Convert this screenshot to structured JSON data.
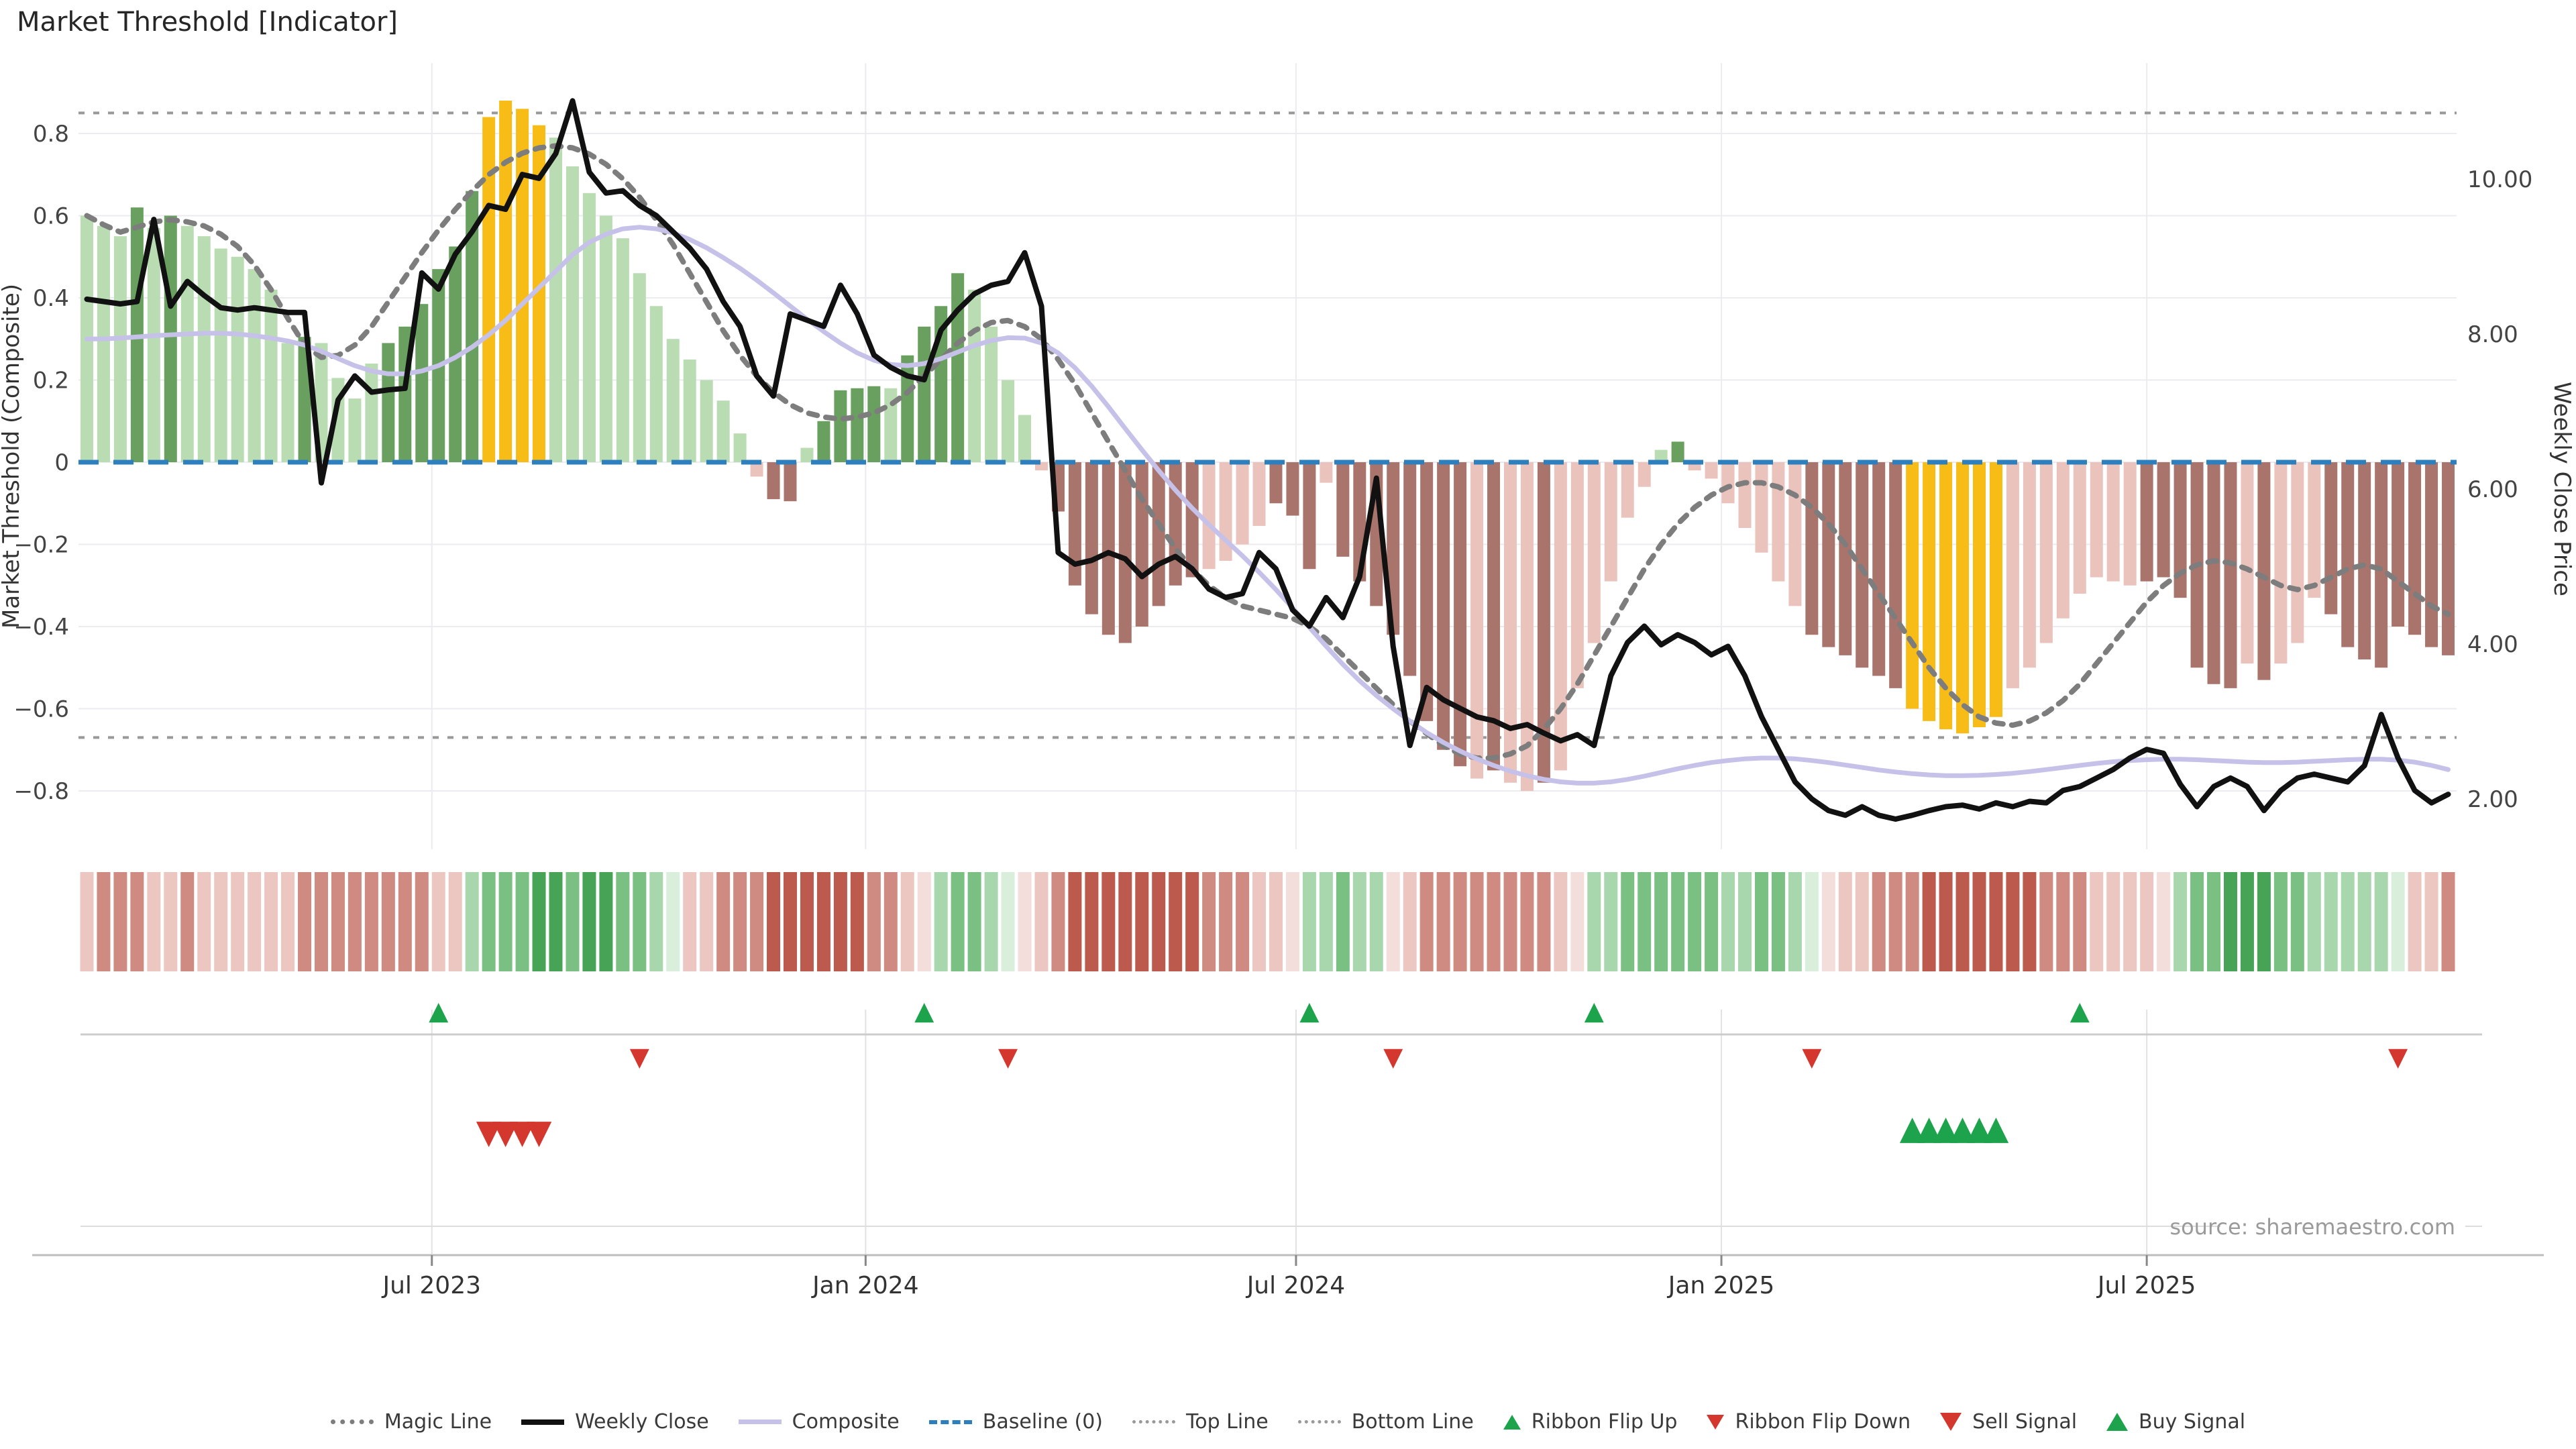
{
  "title": "Market Threshold [Indicator]",
  "source": "source: sharemaestro.com",
  "axes": {
    "left": {
      "label": "Market Threshold (Composite)",
      "tick_labels": [
        "0.8",
        "0.6",
        "0.4",
        "0.2",
        "0",
        "−0.2",
        "−0.4",
        "−0.6",
        "−0.8"
      ],
      "tick_values": [
        0.8,
        0.6,
        0.4,
        0.2,
        0,
        -0.2,
        -0.4,
        -0.6,
        -0.8
      ],
      "range": [
        -0.94,
        0.97
      ]
    },
    "right": {
      "label": "Weekly Close Price",
      "tick_labels": [
        "10.00",
        "8.00",
        "6.00",
        "4.00",
        "2.00"
      ],
      "tick_values": [
        10,
        8,
        6,
        4,
        2
      ],
      "range": [
        1.35,
        11.5
      ]
    },
    "x": {
      "tick_labels": [
        "Jul 2023",
        "Jan 2024",
        "Jul 2024",
        "Jan 2025",
        "Jul 2025"
      ],
      "tick_weeks": [
        20.6,
        46.5,
        72.2,
        97.6,
        123
      ]
    }
  },
  "legend": {
    "items": [
      {
        "label": "Magic Line",
        "type": "dotted-line",
        "color": "#7d7d7d"
      },
      {
        "label": "Weekly Close",
        "type": "solid-line",
        "color": "#111111"
      },
      {
        "label": "Composite",
        "type": "solid-line",
        "color": "#c6c1e8"
      },
      {
        "label": "Baseline (0)",
        "type": "dashed-line",
        "color": "#2e7fbe"
      },
      {
        "label": "Top Line",
        "type": "fine-dotted-line",
        "color": "#999999"
      },
      {
        "label": "Bottom Line",
        "type": "fine-dotted-line",
        "color": "#999999"
      },
      {
        "label": "Ribbon Flip Up",
        "type": "triangle-up",
        "color": "#1da34c"
      },
      {
        "label": "Ribbon Flip Down",
        "type": "triangle-down",
        "color": "#d4372e"
      },
      {
        "label": "Sell Signal",
        "type": "triangle-down-large",
        "color": "#d4372e"
      },
      {
        "label": "Buy Signal",
        "type": "triangle-up-large",
        "color": "#1da34c"
      }
    ]
  },
  "colors": {
    "bar_dark_green": "#69a05f",
    "bar_light_green": "#b9dcb2",
    "bar_yellow": "#f7bd16",
    "bar_light_pink": "#eac3bd",
    "bar_brown": "#a9746c",
    "ribbon_g0": "#d9eedb",
    "ribbon_g1": "#a8d7ae",
    "ribbon_g2": "#7ac083",
    "ribbon_g3": "#47a457",
    "ribbon_r0": "#f3dedb",
    "ribbon_r1": "#ecc6c1",
    "ribbon_r2": "#cf8b81",
    "ribbon_r3": "#bb5a4d",
    "weekly_close": "#111111",
    "composite": "#c6c1e8",
    "magic": "#7d7d7d",
    "baseline": "#2e7fbe",
    "top_bottom": "#999999",
    "grid": "#ebebf1",
    "signal_up": "#1da34c",
    "signal_down": "#d4372e"
  },
  "chart_data": {
    "type": "combo (weekly bars + lines + ribbon heatmap + signal markers)",
    "weeks": 142,
    "top_line": 0.85,
    "bottom_line": -0.67,
    "baseline": 0,
    "threshold_bars": {
      "values": [
        0.6,
        0.575,
        0.55,
        0.62,
        0.57,
        0.6,
        0.575,
        0.55,
        0.52,
        0.5,
        0.47,
        0.42,
        0.29,
        0.305,
        0.29,
        0.205,
        0.155,
        0.24,
        0.29,
        0.33,
        0.385,
        0.47,
        0.525,
        0.66,
        0.84,
        0.88,
        0.86,
        0.82,
        0.79,
        0.72,
        0.655,
        0.6,
        0.545,
        0.46,
        0.38,
        0.3,
        0.25,
        0.2,
        0.15,
        0.07,
        -0.035,
        -0.09,
        -0.095,
        0.035,
        0.1,
        0.175,
        0.18,
        0.185,
        0.18,
        0.26,
        0.33,
        0.38,
        0.46,
        0.42,
        0.33,
        0.2,
        0.115,
        -0.02,
        -0.12,
        -0.3,
        -0.37,
        -0.42,
        -0.44,
        -0.4,
        -0.35,
        -0.3,
        -0.28,
        -0.26,
        -0.24,
        -0.2,
        -0.155,
        -0.1,
        -0.13,
        -0.26,
        -0.05,
        -0.23,
        -0.29,
        -0.35,
        -0.42,
        -0.52,
        -0.63,
        -0.7,
        -0.74,
        -0.77,
        -0.75,
        -0.78,
        -0.8,
        -0.78,
        -0.75,
        -0.55,
        -0.44,
        -0.29,
        -0.135,
        -0.06,
        0.03,
        0.05,
        -0.02,
        -0.04,
        -0.1,
        -0.16,
        -0.22,
        -0.29,
        -0.35,
        -0.42,
        -0.45,
        -0.47,
        -0.5,
        -0.52,
        -0.55,
        -0.6,
        -0.63,
        -0.65,
        -0.66,
        -0.645,
        -0.62,
        -0.55,
        -0.5,
        -0.44,
        -0.38,
        -0.32,
        -0.28,
        -0.29,
        -0.3,
        -0.29,
        -0.28,
        -0.33,
        -0.5,
        -0.54,
        -0.55,
        -0.49,
        -0.53,
        -0.49,
        -0.44,
        -0.33,
        -0.37,
        -0.45,
        -0.48,
        -0.5,
        -0.4,
        -0.42,
        -0.45,
        -0.47
      ],
      "colors": [
        "lg",
        "lg",
        "lg",
        "dg",
        "lg",
        "dg",
        "lg",
        "lg",
        "lg",
        "lg",
        "lg",
        "lg",
        "lg",
        "dg",
        "lg",
        "lg",
        "lg",
        "lg",
        "dg",
        "dg",
        "dg",
        "dg",
        "dg",
        "dg",
        "y",
        "y",
        "y",
        "y",
        "lg",
        "lg",
        "lg",
        "lg",
        "lg",
        "lg",
        "lg",
        "lg",
        "lg",
        "lg",
        "lg",
        "lg",
        "lp",
        "br",
        "br",
        "lg",
        "dg",
        "dg",
        "dg",
        "dg",
        "lg",
        "dg",
        "dg",
        "dg",
        "dg",
        "lg",
        "lg",
        "lg",
        "lg",
        "lp",
        "br",
        "br",
        "br",
        "br",
        "br",
        "br",
        "br",
        "br",
        "br",
        "lp",
        "lp",
        "lp",
        "lp",
        "br",
        "br",
        "br",
        "lp",
        "br",
        "br",
        "br",
        "br",
        "br",
        "br",
        "br",
        "br",
        "lp",
        "br",
        "lp",
        "lp",
        "br",
        "lp",
        "lp",
        "lp",
        "lp",
        "lp",
        "lp",
        "lg",
        "dg",
        "lp",
        "lp",
        "lp",
        "lp",
        "lp",
        "lp",
        "lp",
        "br",
        "br",
        "br",
        "br",
        "br",
        "br",
        "y",
        "y",
        "y",
        "y",
        "y",
        "y",
        "lp",
        "lp",
        "lp",
        "lp",
        "lp",
        "lp",
        "lp",
        "lp",
        "br",
        "br",
        "br",
        "br",
        "br",
        "br",
        "lp",
        "br",
        "lp",
        "lp",
        "lp",
        "br",
        "br",
        "br",
        "br",
        "br",
        "br",
        "br",
        "br"
      ]
    },
    "weekly_close_price": [
      8.45,
      8.42,
      8.39,
      8.42,
      9.48,
      8.36,
      8.68,
      8.5,
      8.34,
      8.31,
      8.34,
      8.31,
      8.28,
      8.28,
      6.08,
      7.15,
      7.46,
      7.25,
      7.28,
      7.3,
      8.79,
      8.58,
      9.03,
      9.32,
      9.66,
      9.61,
      10.06,
      10.01,
      10.33,
      11.01,
      10.09,
      9.82,
      9.85,
      9.66,
      9.53,
      9.32,
      9.11,
      8.84,
      8.42,
      8.1,
      7.46,
      7.2,
      8.26,
      8.18,
      8.1,
      8.63,
      8.26,
      7.73,
      7.57,
      7.46,
      7.41,
      8.05,
      8.31,
      8.52,
      8.63,
      8.68,
      9.05,
      8.36,
      5.18,
      5.03,
      5.08,
      5.18,
      5.1,
      4.87,
      5.03,
      5.13,
      4.97,
      4.71,
      4.6,
      4.65,
      5.18,
      4.97,
      4.44,
      4.23,
      4.6,
      4.34,
      4.87,
      6.14,
      3.97,
      2.69,
      3.44,
      3.28,
      3.17,
      3.06,
      3.01,
      2.91,
      2.96,
      2.85,
      2.75,
      2.83,
      2.69,
      3.59,
      4.02,
      4.23,
      3.99,
      4.12,
      4.02,
      3.86,
      3.97,
      3.59,
      3.06,
      2.64,
      2.22,
      2.0,
      1.85,
      1.79,
      1.9,
      1.79,
      1.74,
      1.79,
      1.85,
      1.9,
      1.92,
      1.87,
      1.95,
      1.9,
      1.97,
      1.95,
      2.11,
      2.16,
      2.27,
      2.38,
      2.53,
      2.64,
      2.59,
      2.19,
      1.9,
      2.16,
      2.27,
      2.16,
      1.85,
      2.11,
      2.27,
      2.32,
      2.27,
      2.22,
      2.43,
      3.09,
      2.53,
      2.11,
      1.95,
      2.06
    ],
    "composite": [
      0.3,
      0.3,
      0.302,
      0.305,
      0.308,
      0.31,
      0.312,
      0.314,
      0.314,
      0.312,
      0.308,
      0.302,
      0.295,
      0.285,
      0.27,
      0.252,
      0.235,
      0.222,
      0.215,
      0.215,
      0.222,
      0.235,
      0.255,
      0.28,
      0.31,
      0.345,
      0.385,
      0.425,
      0.465,
      0.505,
      0.535,
      0.555,
      0.568,
      0.572,
      0.568,
      0.558,
      0.542,
      0.522,
      0.498,
      0.472,
      0.443,
      0.412,
      0.38,
      0.348,
      0.318,
      0.29,
      0.266,
      0.248,
      0.238,
      0.235,
      0.24,
      0.252,
      0.268,
      0.284,
      0.296,
      0.303,
      0.302,
      0.29,
      0.266,
      0.23,
      0.185,
      0.135,
      0.082,
      0.03,
      -0.02,
      -0.068,
      -0.112,
      -0.152,
      -0.19,
      -0.228,
      -0.268,
      -0.31,
      -0.355,
      -0.402,
      -0.448,
      -0.492,
      -0.532,
      -0.568,
      -0.6,
      -0.63,
      -0.658,
      -0.682,
      -0.703,
      -0.722,
      -0.738,
      -0.752,
      -0.763,
      -0.772,
      -0.778,
      -0.781,
      -0.781,
      -0.778,
      -0.772,
      -0.764,
      -0.755,
      -0.746,
      -0.738,
      -0.731,
      -0.726,
      -0.722,
      -0.72,
      -0.72,
      -0.722,
      -0.726,
      -0.731,
      -0.737,
      -0.743,
      -0.749,
      -0.754,
      -0.758,
      -0.761,
      -0.763,
      -0.763,
      -0.762,
      -0.76,
      -0.757,
      -0.753,
      -0.748,
      -0.743,
      -0.738,
      -0.733,
      -0.729,
      -0.726,
      -0.724,
      -0.723,
      -0.723,
      -0.724,
      -0.726,
      -0.728,
      -0.73,
      -0.731,
      -0.731,
      -0.73,
      -0.728,
      -0.726,
      -0.724,
      -0.723,
      -0.723,
      -0.725,
      -0.73,
      -0.738,
      -0.748
    ],
    "magic_line": [
      0.6,
      0.578,
      0.56,
      0.572,
      0.585,
      0.59,
      0.585,
      0.575,
      0.555,
      0.525,
      0.48,
      0.42,
      0.35,
      0.285,
      0.255,
      0.26,
      0.285,
      0.33,
      0.39,
      0.45,
      0.51,
      0.565,
      0.615,
      0.66,
      0.7,
      0.73,
      0.752,
      0.765,
      0.77,
      0.765,
      0.75,
      0.725,
      0.69,
      0.645,
      0.59,
      0.53,
      0.46,
      0.39,
      0.32,
      0.26,
      0.21,
      0.17,
      0.14,
      0.12,
      0.11,
      0.105,
      0.11,
      0.12,
      0.14,
      0.17,
      0.21,
      0.25,
      0.29,
      0.32,
      0.34,
      0.345,
      0.33,
      0.3,
      0.25,
      0.19,
      0.12,
      0.05,
      -0.02,
      -0.09,
      -0.15,
      -0.21,
      -0.26,
      -0.3,
      -0.33,
      -0.35,
      -0.36,
      -0.37,
      -0.38,
      -0.4,
      -0.43,
      -0.47,
      -0.51,
      -0.55,
      -0.59,
      -0.63,
      -0.66,
      -0.69,
      -0.71,
      -0.72,
      -0.72,
      -0.71,
      -0.69,
      -0.65,
      -0.6,
      -0.54,
      -0.47,
      -0.4,
      -0.33,
      -0.26,
      -0.2,
      -0.15,
      -0.11,
      -0.08,
      -0.06,
      -0.05,
      -0.05,
      -0.06,
      -0.08,
      -0.11,
      -0.15,
      -0.2,
      -0.26,
      -0.32,
      -0.38,
      -0.44,
      -0.5,
      -0.55,
      -0.59,
      -0.62,
      -0.635,
      -0.64,
      -0.63,
      -0.61,
      -0.58,
      -0.54,
      -0.49,
      -0.44,
      -0.39,
      -0.34,
      -0.3,
      -0.27,
      -0.25,
      -0.24,
      -0.245,
      -0.26,
      -0.28,
      -0.3,
      -0.31,
      -0.3,
      -0.28,
      -0.26,
      -0.25,
      -0.26,
      -0.29,
      -0.32,
      -0.35,
      -0.37
    ],
    "ribbon": [
      "r1",
      "r2",
      "r2",
      "r2",
      "r1",
      "r1",
      "r2",
      "r1",
      "r1",
      "r1",
      "r1",
      "r1",
      "r1",
      "r2",
      "r2",
      "r2",
      "r2",
      "r2",
      "r2",
      "r2",
      "r2",
      "r1",
      "r1",
      "g1",
      "g2",
      "g2",
      "g2",
      "g3",
      "g3",
      "g2",
      "g3",
      "g3",
      "g2",
      "g2",
      "g1",
      "g0",
      "r1",
      "r1",
      "r2",
      "r2",
      "r2",
      "r3",
      "r3",
      "r3",
      "r3",
      "r3",
      "r3",
      "r2",
      "r2",
      "r1",
      "r0",
      "g1",
      "g2",
      "g2",
      "g1",
      "g0",
      "r0",
      "r1",
      "r2",
      "r3",
      "r3",
      "r3",
      "r3",
      "r3",
      "r3",
      "r3",
      "r3",
      "r2",
      "r2",
      "r2",
      "r1",
      "r1",
      "r0",
      "g1",
      "g1",
      "g2",
      "g1",
      "g1",
      "r0",
      "r1",
      "r2",
      "r2",
      "r2",
      "r2",
      "r2",
      "r2",
      "r2",
      "r2",
      "r1",
      "r0",
      "g1",
      "g1",
      "g2",
      "g2",
      "g2",
      "g2",
      "g2",
      "g2",
      "g1",
      "g1",
      "g2",
      "g2",
      "g1",
      "g0",
      "r0",
      "r1",
      "r1",
      "r2",
      "r2",
      "r2",
      "r3",
      "r3",
      "r3",
      "r3",
      "r3",
      "r3",
      "r3",
      "r2",
      "r2",
      "r2",
      "r1",
      "r1",
      "r1",
      "r1",
      "r0",
      "g1",
      "g2",
      "g2",
      "g3",
      "g3",
      "g3",
      "g2",
      "g2",
      "g1",
      "g1",
      "g1",
      "g1",
      "g1",
      "g0",
      "r1",
      "r1",
      "r2"
    ],
    "signals": {
      "ribbon_flip_up_weeks": [
        21,
        50,
        73,
        90,
        119
      ],
      "ribbon_flip_down_weeks": [
        33,
        55,
        78,
        103,
        138
      ],
      "sell_signal_weeks": [
        24,
        25,
        26,
        27
      ],
      "buy_signal_weeks": [
        109,
        110,
        111,
        112,
        113,
        114
      ]
    }
  }
}
